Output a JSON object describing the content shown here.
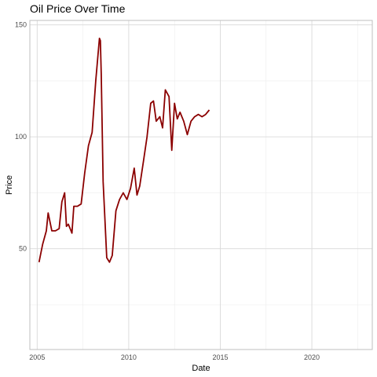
{
  "chart_data": {
    "type": "line",
    "title": "Oil Price Over Time",
    "xlabel": "Date",
    "ylabel": "Price",
    "xlim": [
      2004.6,
      2023.3
    ],
    "ylim": [
      5,
      152
    ],
    "x_ticks": [
      2005,
      2010,
      2015,
      2020
    ],
    "y_ticks": [
      50,
      100,
      150
    ],
    "grid": true,
    "line_color": "#8b0000",
    "series": [
      {
        "x": [
          2005.1,
          2005.3,
          2005.5,
          2005.6,
          2005.8,
          2006.0,
          2006.2,
          2006.35,
          2006.5,
          2006.6,
          2006.7,
          2006.8,
          2006.9,
          2007.0,
          2007.2,
          2007.4,
          2007.6,
          2007.8,
          2008.0,
          2008.2,
          2008.4,
          2008.45,
          2008.5,
          2008.6,
          2008.8,
          2008.95,
          2009.1,
          2009.3,
          2009.5,
          2009.7,
          2009.9,
          2010.1,
          2010.3,
          2010.45,
          2010.6,
          2010.8,
          2011.0,
          2011.2,
          2011.35,
          2011.5,
          2011.7,
          2011.85,
          2012.0,
          2012.2,
          2012.35,
          2012.5,
          2012.65,
          2012.8,
          2013.0,
          2013.2,
          2013.4,
          2013.6,
          2013.8,
          2014.0,
          2014.2,
          2014.4
        ],
        "y": [
          44,
          52,
          58,
          66,
          58,
          58,
          59,
          71,
          75,
          60,
          61,
          59,
          57,
          69,
          69,
          70,
          84,
          96,
          102,
          125,
          144,
          143,
          128,
          80,
          46,
          44,
          47,
          67,
          72,
          75,
          72,
          77,
          86,
          74,
          78,
          89,
          100,
          115,
          116,
          107,
          109,
          104,
          121,
          118,
          94,
          115,
          108,
          111,
          107,
          101,
          107,
          109,
          110,
          109,
          110,
          112
        ]
      }
    ]
  }
}
